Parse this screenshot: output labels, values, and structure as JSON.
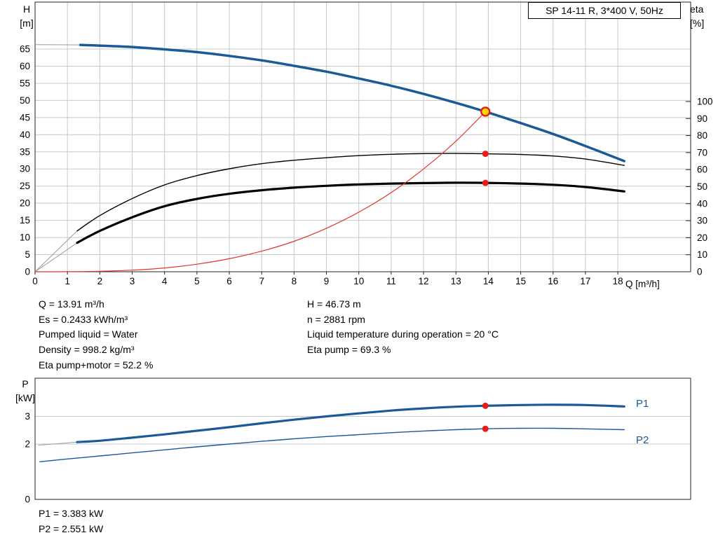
{
  "header": {
    "title_box": "SP 14-11 R, 3*400 V, 50Hz"
  },
  "axis_labels": {
    "h_name": "H",
    "h_unit": "[m]",
    "eta_name": "eta",
    "eta_unit": "[%]",
    "q_label": "Q [m³/h]",
    "p_name": "P",
    "p_unit": "[kW]"
  },
  "info": {
    "left": [
      "Q = 13.91 m³/h",
      "Es = 0.2433 kWh/m³",
      "Pumped liquid = Water",
      "Density = 998.2 kg/m³",
      "Eta pump+motor = 52.2 %"
    ],
    "right": [
      "H = 46.73 m",
      "n = 2881 rpm",
      "Liquid temperature during operation = 20 °C",
      "Eta pump = 69.3 %"
    ]
  },
  "power_results": [
    "P1 = 3.383 kW",
    "P2 = 2.551 kW"
  ],
  "colors": {
    "curve_blue": "#1b5a97",
    "curve_black": "#000000",
    "curve_red": "#e0352b",
    "marker_red": "#e51c18",
    "duty_yellow": "#ffd900",
    "grid": "#c8c8c8",
    "lead": "#9a9a9a",
    "border": "#222222"
  },
  "chart_data": [
    {
      "id": "main",
      "type": "line",
      "title": "",
      "grid_color": "#c8c8c8",
      "lead_color": "#9a9a9a",
      "marker_color": "#e51c18",
      "duty_fill": "#ffd900",
      "x": {
        "label": "Q [m³/h]",
        "min": 0,
        "max": 20.25,
        "ticks": [
          0,
          1,
          2,
          3,
          4,
          5,
          6,
          7,
          8,
          9,
          10,
          11,
          12,
          13,
          14,
          15,
          16,
          17,
          18
        ],
        "grid_ticks": [
          1,
          2,
          3,
          4,
          5,
          6,
          7,
          8,
          9,
          10,
          11,
          12,
          13,
          14,
          15,
          16,
          17,
          18
        ]
      },
      "y_left": {
        "label": "H [m]",
        "min": 0,
        "max": 78.7,
        "ticks": [
          0,
          5,
          10,
          15,
          20,
          25,
          30,
          35,
          40,
          45,
          50,
          55,
          60,
          65
        ],
        "grid_ticks": [
          5,
          10,
          15,
          20,
          25,
          30,
          35,
          40,
          45,
          50,
          55,
          60,
          65
        ]
      },
      "y_right": {
        "label": "eta [%]",
        "min": 0,
        "max": 158.4,
        "ticks": [
          0,
          10,
          20,
          30,
          40,
          50,
          60,
          70,
          80,
          90,
          100
        ]
      },
      "series": [
        {
          "name": "H-curve",
          "label": "",
          "axis": "left",
          "color": "#1b5a97",
          "width": 3.5,
          "lead": [
            [
              0,
              66.3
            ],
            [
              1.4,
              66.2
            ]
          ],
          "points": [
            [
              1.4,
              66.2
            ],
            [
              2,
              66.0
            ],
            [
              3,
              65.6
            ],
            [
              4,
              64.9
            ],
            [
              5,
              64.1
            ],
            [
              6,
              63.0
            ],
            [
              7,
              61.7
            ],
            [
              8,
              60.1
            ],
            [
              9,
              58.4
            ],
            [
              10,
              56.4
            ],
            [
              11,
              54.3
            ],
            [
              12,
              51.9
            ],
            [
              13,
              49.3
            ],
            [
              13.91,
              46.73
            ],
            [
              15,
              43.4
            ],
            [
              16,
              40.2
            ],
            [
              17,
              36.7
            ],
            [
              18.2,
              32.3
            ]
          ]
        },
        {
          "name": "eta-pump",
          "label": "",
          "axis": "right",
          "color": "#000000",
          "width": 1.4,
          "lead": [
            [
              0,
              0
            ],
            [
              1.3,
              24
            ]
          ],
          "points": [
            [
              1.3,
              24
            ],
            [
              2,
              33
            ],
            [
              3,
              43
            ],
            [
              4,
              51
            ],
            [
              5,
              56.5
            ],
            [
              6,
              60.5
            ],
            [
              7,
              63.5
            ],
            [
              8,
              65.5
            ],
            [
              9,
              67
            ],
            [
              10,
              68.2
            ],
            [
              11,
              69
            ],
            [
              12,
              69.4
            ],
            [
              13,
              69.5
            ],
            [
              13.91,
              69.3
            ],
            [
              15,
              68.9
            ],
            [
              16,
              68
            ],
            [
              17,
              66.2
            ],
            [
              18.2,
              62.5
            ]
          ]
        },
        {
          "name": "eta-pump-motor",
          "label": "",
          "axis": "right",
          "color": "#000000",
          "width": 3.2,
          "lead": [
            [
              0,
              0
            ],
            [
              1.3,
              17
            ]
          ],
          "points": [
            [
              1.3,
              17
            ],
            [
              2,
              24
            ],
            [
              3,
              32
            ],
            [
              4,
              38.5
            ],
            [
              5,
              42.8
            ],
            [
              6,
              45.8
            ],
            [
              7,
              47.9
            ],
            [
              8,
              49.4
            ],
            [
              9,
              50.5
            ],
            [
              10,
              51.3
            ],
            [
              11,
              51.8
            ],
            [
              12,
              52.1
            ],
            [
              13,
              52.3
            ],
            [
              13.91,
              52.2
            ],
            [
              15,
              51.8
            ],
            [
              16,
              51.1
            ],
            [
              17,
              49.8
            ],
            [
              18.2,
              47.2
            ]
          ]
        },
        {
          "name": "duty-curve",
          "label": "",
          "axis": "left",
          "color": "#e0352b",
          "width": 1.2,
          "points": [
            [
              0,
              0
            ],
            [
              1,
              0.02
            ],
            [
              2,
              0.14
            ],
            [
              3,
              0.47
            ],
            [
              4,
              1.1
            ],
            [
              5,
              2.2
            ],
            [
              6,
              3.8
            ],
            [
              7,
              6.0
            ],
            [
              8,
              8.9
            ],
            [
              9,
              12.7
            ],
            [
              10,
              17.4
            ],
            [
              11,
              23.1
            ],
            [
              12,
              30.0
            ],
            [
              13,
              38.1
            ],
            [
              13.91,
              46.73
            ]
          ]
        }
      ],
      "markers": [
        {
          "type": "duty",
          "axis": "left",
          "x": 13.91,
          "y": 46.73
        },
        {
          "type": "dot",
          "axis": "right",
          "x": 13.91,
          "y": 69.3
        },
        {
          "type": "dot",
          "axis": "right",
          "x": 13.91,
          "y": 52.2
        }
      ]
    },
    {
      "id": "power",
      "type": "line",
      "title": "",
      "grid_color": "#c8c8c8",
      "lead_color": "#9a9a9a",
      "marker_color": "#e51c18",
      "duty_fill": "#ffd900",
      "x": {
        "label": "",
        "min": 0,
        "max": 20.25,
        "ticks": [],
        "grid_ticks": []
      },
      "y_left": {
        "label": "P [kW]",
        "min": 0,
        "max": 4.38,
        "ticks": [
          0,
          2,
          3
        ],
        "grid_ticks": [
          2,
          3
        ]
      },
      "series": [
        {
          "name": "P1",
          "label": "P1",
          "axis": "left",
          "color": "#1b5a97",
          "width": 3.2,
          "lead": [
            [
              0.1,
              1.96
            ],
            [
              1.3,
              2.07
            ]
          ],
          "points": [
            [
              1.3,
              2.07
            ],
            [
              2,
              2.12
            ],
            [
              3,
              2.23
            ],
            [
              4,
              2.35
            ],
            [
              5,
              2.48
            ],
            [
              6,
              2.61
            ],
            [
              7,
              2.75
            ],
            [
              8,
              2.88
            ],
            [
              9,
              3.0
            ],
            [
              10,
              3.11
            ],
            [
              11,
              3.21
            ],
            [
              12,
              3.29
            ],
            [
              13,
              3.35
            ],
            [
              13.91,
              3.383
            ],
            [
              15,
              3.41
            ],
            [
              16,
              3.42
            ],
            [
              17,
              3.41
            ],
            [
              18.2,
              3.36
            ]
          ]
        },
        {
          "name": "P2",
          "label": "P2",
          "axis": "left",
          "color": "#1b5a97",
          "width": 1.4,
          "points": [
            [
              0.15,
              1.36
            ],
            [
              1,
              1.46
            ],
            [
              2,
              1.57
            ],
            [
              3,
              1.68
            ],
            [
              4,
              1.79
            ],
            [
              5,
              1.9
            ],
            [
              6,
              2.0
            ],
            [
              7,
              2.1
            ],
            [
              8,
              2.19
            ],
            [
              9,
              2.27
            ],
            [
              10,
              2.34
            ],
            [
              11,
              2.41
            ],
            [
              12,
              2.47
            ],
            [
              13,
              2.52
            ],
            [
              13.91,
              2.551
            ],
            [
              15,
              2.57
            ],
            [
              16,
              2.57
            ],
            [
              17,
              2.55
            ],
            [
              18.2,
              2.52
            ]
          ]
        }
      ],
      "markers": [
        {
          "type": "dot",
          "axis": "left",
          "x": 13.91,
          "y": 3.383
        },
        {
          "type": "dot",
          "axis": "left",
          "x": 13.91,
          "y": 2.551
        }
      ]
    }
  ]
}
